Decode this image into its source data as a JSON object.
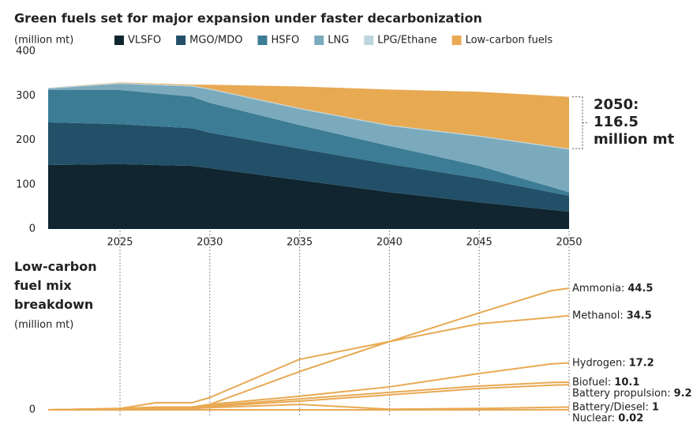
{
  "chart_data": [
    {
      "type": "area",
      "title": "Green fuels set for major expansion under faster decarbonization",
      "y_label": "(million mt)",
      "x": [
        2021,
        2025,
        2029,
        2030,
        2035,
        2040,
        2045,
        2050
      ],
      "series": [
        {
          "name": "VLSFO",
          "color": "#10252f",
          "values": [
            144,
            146,
            142,
            137,
            110,
            83,
            60,
            39
          ]
        },
        {
          "name": "MGO/MDO",
          "color": "#225068",
          "values": [
            96,
            90,
            85,
            80,
            71,
            63,
            54,
            36
          ]
        },
        {
          "name": "HSFO",
          "color": "#3c7c95",
          "values": [
            73,
            77,
            71,
            67,
            53,
            41,
            28,
            8
          ]
        },
        {
          "name": "LNG",
          "color": "#7baabd",
          "values": [
            3,
            14,
            23,
            30,
            36,
            45,
            66,
            96
          ]
        },
        {
          "name": "LPG/Ethane",
          "color": "#bcd5de",
          "values": [
            2,
            2,
            2,
            2,
            2,
            2,
            2,
            2
          ]
        },
        {
          "name": "Low-carbon fuels",
          "color": "#e8a953",
          "values": [
            0,
            1,
            2,
            9,
            49,
            80,
            99,
            116.5
          ]
        }
      ],
      "xlim": [
        2021,
        2050
      ],
      "xticks": [
        2025,
        2030,
        2035,
        2040,
        2045,
        2050
      ],
      "ylim": [
        0,
        400
      ],
      "yticks": [
        0,
        100,
        200,
        300,
        400
      ],
      "annotation_title": "2050:",
      "annotation_unit": "million mt"
    },
    {
      "type": "line",
      "title": "Low-carbon fuel mix breakdown",
      "y_label": "(million mt)",
      "x": [
        2021,
        2025,
        2027,
        2029,
        2030,
        2035,
        2040,
        2045,
        2049,
        2050
      ],
      "series": [
        {
          "name": "Ammonia:",
          "color": "#e8a953",
          "values": [
            0,
            0.5,
            1,
            1,
            2,
            14,
            25,
            35.5,
            43.6,
            44.5
          ]
        },
        {
          "name": "Methanol:",
          "color": "#e8a953",
          "values": [
            0,
            0.5,
            2.6,
            2.6,
            4.5,
            18.5,
            25,
            31.5,
            33.8,
            34.5
          ]
        },
        {
          "name": "Hydrogen:",
          "color": "#e8a953",
          "values": [
            0,
            0.3,
            0.5,
            1,
            2,
            5,
            8.4,
            13.3,
            16.8,
            17.2
          ]
        },
        {
          "name": "Biofuel:",
          "color": "#e8a953",
          "values": [
            0,
            0.3,
            0.5,
            0.8,
            1.5,
            4,
            6.4,
            8.7,
            10,
            10.1
          ]
        },
        {
          "name": "Battery propulsion:",
          "color": "#e8a953",
          "values": [
            0,
            0.2,
            0.4,
            0.6,
            1.2,
            3.2,
            5.5,
            7.8,
            9,
            9.2
          ]
        },
        {
          "name": "Battery/Diesel:",
          "color": "#e8a953",
          "values": [
            0,
            0.2,
            0.4,
            0.5,
            0.8,
            2,
            0.2,
            0.5,
            0.9,
            1.0
          ]
        },
        {
          "name": "Nuclear:",
          "color": "#e8a953",
          "values": [
            0,
            0,
            0,
            0,
            0,
            0.01,
            0.01,
            0.01,
            0.02,
            0.02
          ]
        }
      ],
      "xlim": [
        2021,
        2050
      ],
      "ylim": [
        0,
        50
      ],
      "yticks": [
        0
      ]
    }
  ]
}
